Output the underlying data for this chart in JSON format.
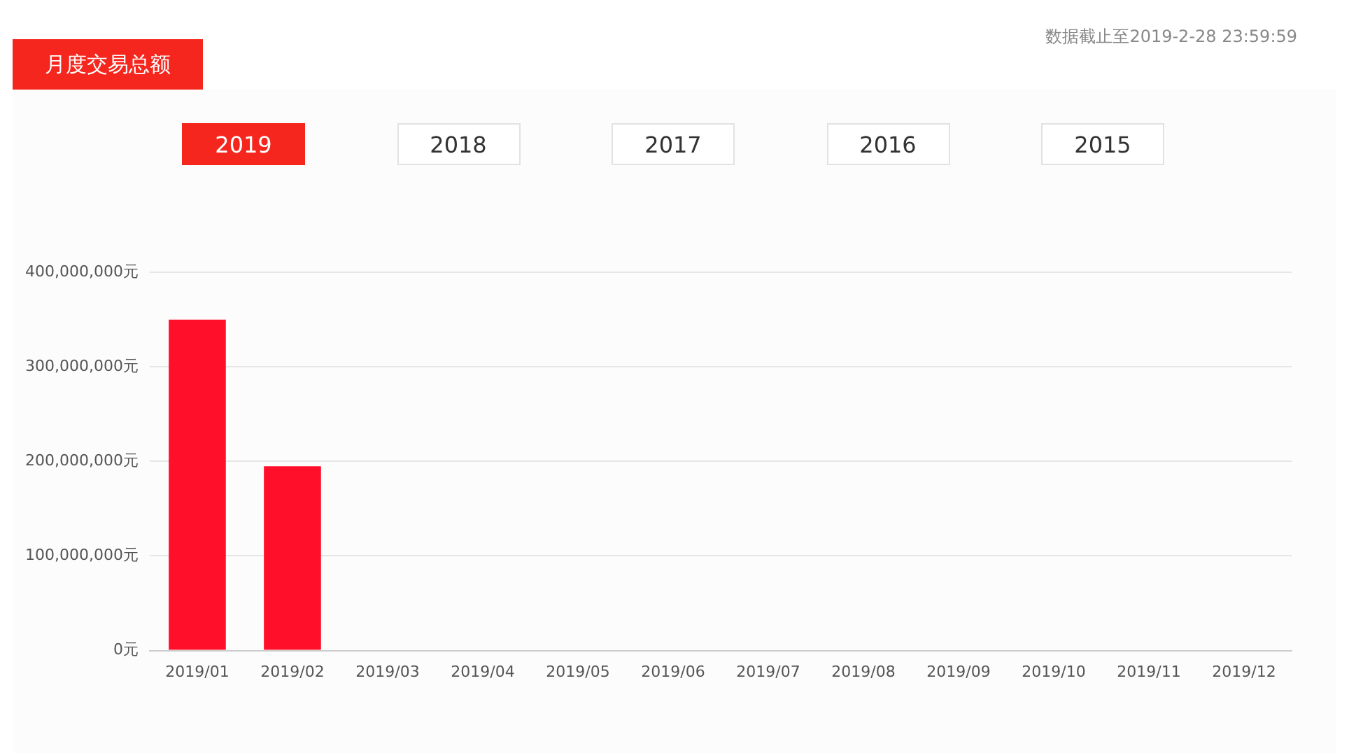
{
  "chart_data": {
    "type": "bar",
    "title": "月度交易总额",
    "annotations": [
      "数据截止至2019-2-28 23:59:59",
      "2019",
      "2018",
      "2017",
      "2016",
      "2015"
    ],
    "categories": [
      "2019/01",
      "2019/02",
      "2019/03",
      "2019/04",
      "2019/05",
      "2019/06",
      "2019/07",
      "2019/08",
      "2019/09",
      "2019/10",
      "2019/11",
      "2019/12"
    ],
    "values": [
      350000000,
      195000000,
      null,
      null,
      null,
      null,
      null,
      null,
      null,
      null,
      null,
      null
    ],
    "color": "#ff0f2a",
    "ylim": [
      0,
      400000000
    ],
    "yticks": [
      {
        "value": 0,
        "label": "0元"
      },
      {
        "value": 100000000,
        "label": "100,000,000元"
      },
      {
        "value": 200000000,
        "label": "200,000,000元"
      },
      {
        "value": 300000000,
        "label": "300,000,000元"
      },
      {
        "value": 400000000,
        "label": "400,000,000元"
      }
    ],
    "grid": "y",
    "legend": false
  }
}
